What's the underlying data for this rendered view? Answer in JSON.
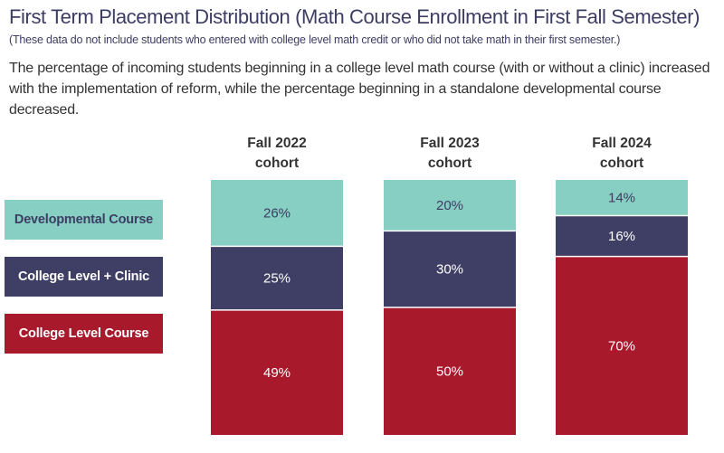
{
  "header": {
    "title": "First Term Placement Distribution (Math Course Enrollment in First Fall Semester)",
    "subtitle": "(These data do not include students who entered with college level math credit or who did not take math in their first semester.)",
    "description": "The percentage of incoming students beginning in a college level math course (with or without a clinic) increased with the implementation of reform, while the percentage beginning in a standalone developmental course decreased."
  },
  "legend": [
    {
      "label": "Developmental Course",
      "color": "#86cfc2",
      "text_color": "#3d3d63"
    },
    {
      "label": "College Level + Clinic",
      "color": "#3f3e64",
      "text_color": "#ffffff"
    },
    {
      "label": "College Level Course",
      "color": "#a8192c",
      "text_color": "#ffffff"
    }
  ],
  "chart_data": {
    "type": "bar",
    "stacked": true,
    "title": "First Term Placement Distribution (Math Course Enrollment in First Fall Semester)",
    "categories": [
      "Fall 2022 cohort",
      "Fall 2023 cohort",
      "Fall 2024 cohort"
    ],
    "category_lines": [
      [
        "Fall 2022",
        "cohort"
      ],
      [
        "Fall 2023",
        "cohort"
      ],
      [
        "Fall 2024",
        "cohort"
      ]
    ],
    "series": [
      {
        "name": "Developmental Course",
        "values": [
          26,
          20,
          14
        ],
        "labels": [
          "26%",
          "20%",
          "14%"
        ],
        "color": "#86cfc2",
        "label_color": "#3d3d63"
      },
      {
        "name": "College Level + Clinic",
        "values": [
          25,
          30,
          16
        ],
        "labels": [
          "25%",
          "30%",
          "16%"
        ],
        "color": "#3f3e64",
        "label_color": "#ffffff"
      },
      {
        "name": "College Level Course",
        "values": [
          49,
          50,
          70
        ],
        "labels": [
          "49%",
          "50%",
          "70%"
        ],
        "color": "#a8192c",
        "label_color": "#ffffff"
      }
    ],
    "ylim": [
      0,
      100
    ],
    "grid": false,
    "legend_position": "left",
    "xlabel": "",
    "ylabel": ""
  }
}
